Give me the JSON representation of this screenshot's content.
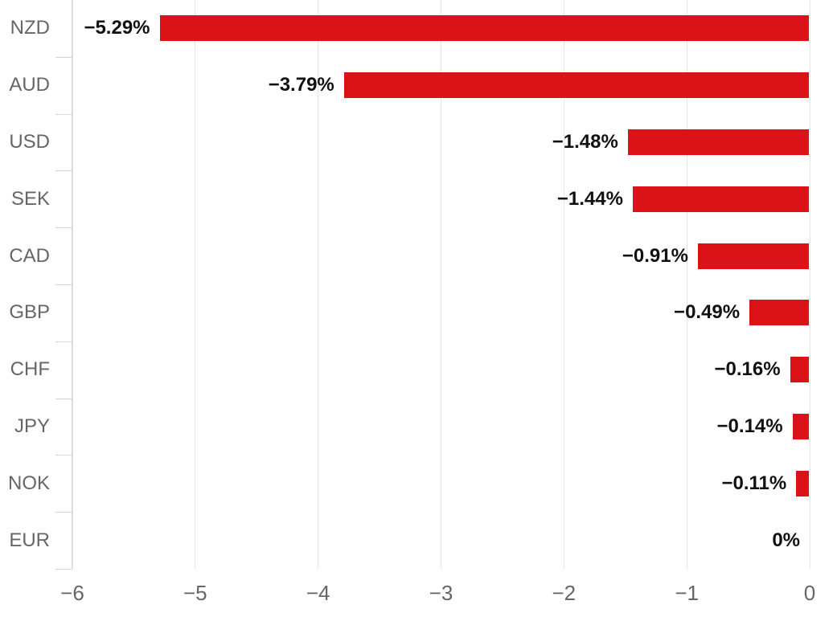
{
  "chart_data": {
    "type": "bar",
    "orientation": "horizontal",
    "title": "",
    "xlabel": "",
    "ylabel": "",
    "categories": [
      "NZD",
      "AUD",
      "USD",
      "SEK",
      "CAD",
      "GBP",
      "CHF",
      "JPY",
      "NOK",
      "EUR"
    ],
    "values": [
      -5.29,
      -3.79,
      -1.48,
      -1.44,
      -0.91,
      -0.49,
      -0.16,
      -0.14,
      -0.11,
      0
    ],
    "data_labels": [
      "−5.29%",
      "−3.79%",
      "−1.48%",
      "−1.44%",
      "−0.91%",
      "−0.49%",
      "−0.16%",
      "−0.14%",
      "−0.11%",
      "0%"
    ],
    "x_ticks": [
      -6,
      -5,
      -4,
      -3,
      -2,
      -1,
      0
    ],
    "x_tick_labels": [
      "−6",
      "−5",
      "−4",
      "−3",
      "−2",
      "−1",
      "0"
    ],
    "xlim": [
      -6,
      0
    ],
    "grid": true,
    "legend": "none",
    "colors": {
      "bar": "#dc1219",
      "gridline": "#e6e6e6",
      "axis_line": "#ccd6eb",
      "category_label": "#666666",
      "x_tick_label": "#666666",
      "value_label": "#111111",
      "background": "#ffffff"
    }
  }
}
